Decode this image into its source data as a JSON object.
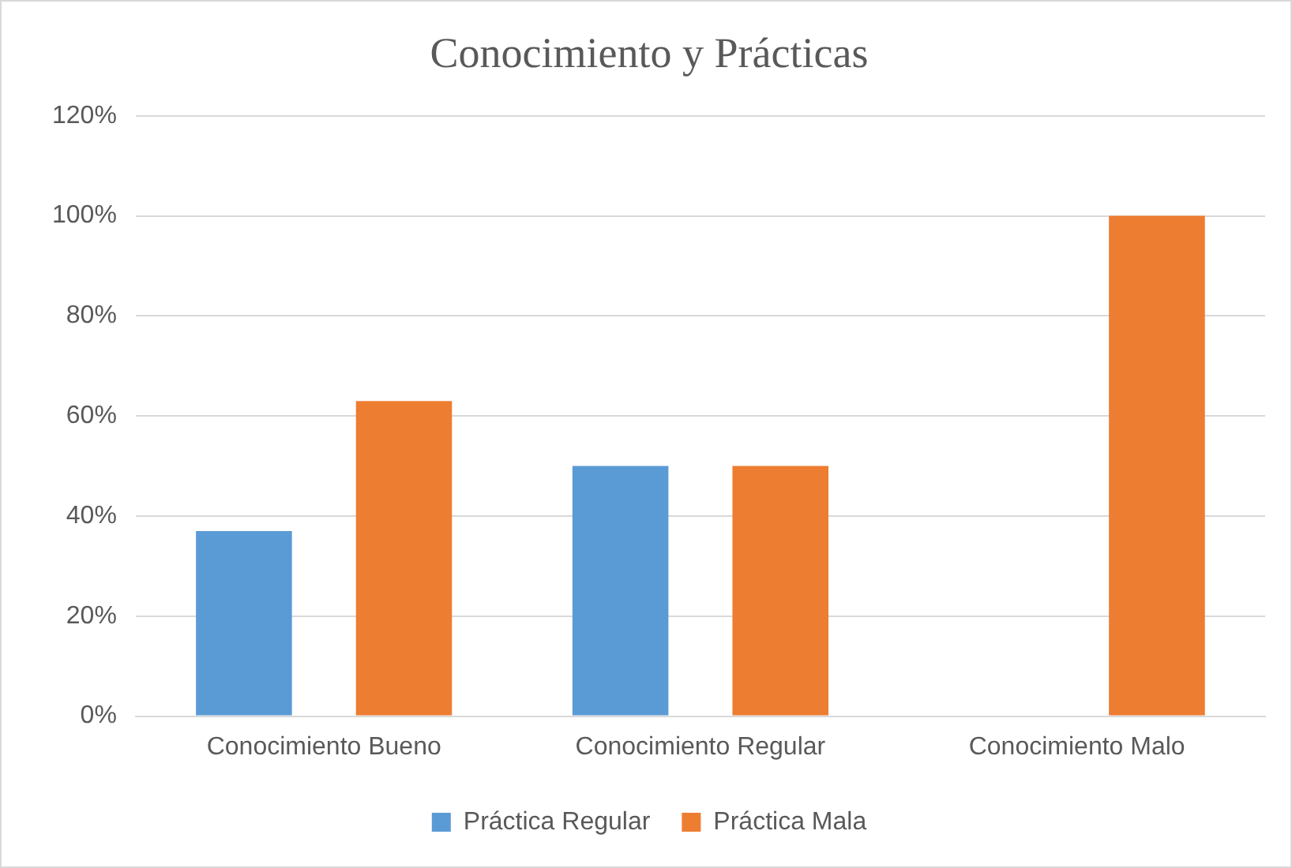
{
  "chart_data": {
    "type": "bar",
    "title": "Conocimiento y Prácticas",
    "categories": [
      "Conocimiento Bueno",
      "Conocimiento Regular",
      "Conocimiento Malo"
    ],
    "series": [
      {
        "name": "Práctica Regular",
        "color": "#5b9bd5",
        "values": [
          37,
          50,
          0
        ]
      },
      {
        "name": "Práctica Mala",
        "color": "#ed7d31",
        "values": [
          63,
          50,
          100
        ]
      }
    ],
    "ylim": [
      0,
      120
    ],
    "yticks": [
      {
        "value": 0,
        "label": "0%"
      },
      {
        "value": 20,
        "label": "20%"
      },
      {
        "value": 40,
        "label": "40%"
      },
      {
        "value": 60,
        "label": "60%"
      },
      {
        "value": 80,
        "label": "80%"
      },
      {
        "value": 100,
        "label": "100%"
      },
      {
        "value": 120,
        "label": "120%"
      }
    ],
    "grid": "y",
    "legend": "bottom"
  }
}
